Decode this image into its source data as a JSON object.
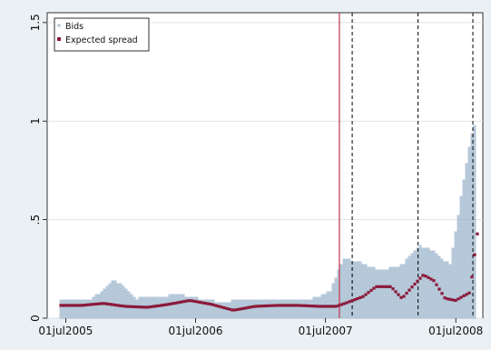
{
  "chart_data": {
    "type": "scatter",
    "xlabel": "",
    "ylabel": "",
    "x_range": [
      "2005-05-10",
      "2008-09-15"
    ],
    "ylim": [
      0,
      1.55
    ],
    "y_ticks": [
      {
        "value": 0,
        "label": "0"
      },
      {
        "value": 0.5,
        "label": ".5"
      },
      {
        "value": 1,
        "label": "1"
      },
      {
        "value": 1.5,
        "label": "1.5"
      }
    ],
    "x_ticks": [
      {
        "date": "2005-07-01",
        "label": "01jul2005"
      },
      {
        "date": "2006-07-01",
        "label": "01jul2006"
      },
      {
        "date": "2007-07-01",
        "label": "01jul2007"
      },
      {
        "date": "2008-07-01",
        "label": "01jul2008"
      }
    ],
    "grid": true,
    "legend_position": "top-left",
    "series": [
      {
        "name": "Bids",
        "marker": "hollow square",
        "color": "#8aa8c2",
        "bands": [
          {
            "x": "2005-06-15",
            "low": 0.0,
            "high": 0.09
          },
          {
            "x": "2005-09-15",
            "low": 0.0,
            "high": 0.1
          },
          {
            "x": "2005-11-15",
            "low": 0.0,
            "high": 0.2
          },
          {
            "x": "2006-01-15",
            "low": 0.0,
            "high": 0.1
          },
          {
            "x": "2006-03-15",
            "low": 0.0,
            "high": 0.11
          },
          {
            "x": "2006-05-15",
            "low": 0.0,
            "high": 0.12
          },
          {
            "x": "2006-07-15",
            "low": 0.0,
            "high": 0.1
          },
          {
            "x": "2006-09-15",
            "low": 0.0,
            "high": 0.08
          },
          {
            "x": "2006-11-15",
            "low": 0.0,
            "high": 0.1
          },
          {
            "x": "2007-01-15",
            "low": 0.0,
            "high": 0.1
          },
          {
            "x": "2007-03-15",
            "low": 0.0,
            "high": 0.09
          },
          {
            "x": "2007-05-15",
            "low": 0.0,
            "high": 0.09
          },
          {
            "x": "2007-07-15",
            "low": 0.0,
            "high": 0.14
          },
          {
            "x": "2007-08-20",
            "low": 0.0,
            "high": 0.3
          },
          {
            "x": "2007-10-01",
            "low": 0.0,
            "high": 0.29
          },
          {
            "x": "2007-12-01",
            "low": 0.0,
            "high": 0.24
          },
          {
            "x": "2008-02-01",
            "low": 0.0,
            "high": 0.27
          },
          {
            "x": "2008-03-20",
            "low": 0.0,
            "high": 0.37
          },
          {
            "x": "2008-05-01",
            "low": 0.0,
            "high": 0.34
          },
          {
            "x": "2008-06-15",
            "low": 0.0,
            "high": 0.27
          },
          {
            "x": "2008-08-10",
            "low": 0.0,
            "high": 0.9
          },
          {
            "x": "2008-08-25",
            "low": 0.0,
            "high": 1.0
          }
        ]
      },
      {
        "name": "Expected spread",
        "marker": "filled square",
        "color": "#8b1a3a",
        "points": [
          {
            "x": "2005-06-15",
            "y": 0.065
          },
          {
            "x": "2005-08-15",
            "y": 0.065
          },
          {
            "x": "2005-10-15",
            "y": 0.075
          },
          {
            "x": "2005-12-15",
            "y": 0.06
          },
          {
            "x": "2006-02-15",
            "y": 0.055
          },
          {
            "x": "2006-04-15",
            "y": 0.07
          },
          {
            "x": "2006-06-15",
            "y": 0.09
          },
          {
            "x": "2006-08-15",
            "y": 0.07
          },
          {
            "x": "2006-10-15",
            "y": 0.04
          },
          {
            "x": "2006-12-15",
            "y": 0.06
          },
          {
            "x": "2007-02-15",
            "y": 0.065
          },
          {
            "x": "2007-04-15",
            "y": 0.065
          },
          {
            "x": "2007-06-15",
            "y": 0.06
          },
          {
            "x": "2007-08-01",
            "y": 0.06
          },
          {
            "x": "2007-09-01",
            "y": 0.08
          },
          {
            "x": "2007-10-15",
            "y": 0.11
          },
          {
            "x": "2007-11-20",
            "y": 0.16
          },
          {
            "x": "2008-01-01",
            "y": 0.16
          },
          {
            "x": "2008-02-01",
            "y": 0.1
          },
          {
            "x": "2008-03-01",
            "y": 0.16
          },
          {
            "x": "2008-04-01",
            "y": 0.22
          },
          {
            "x": "2008-05-01",
            "y": 0.19
          },
          {
            "x": "2008-06-01",
            "y": 0.1
          },
          {
            "x": "2008-07-01",
            "y": 0.09
          },
          {
            "x": "2008-07-20",
            "y": 0.11
          },
          {
            "x": "2008-08-10",
            "y": 0.13
          },
          {
            "x": "2008-08-25",
            "y": 0.35
          },
          {
            "x": "2008-09-05",
            "y": 0.5
          }
        ]
      }
    ],
    "reference_lines": [
      {
        "x": "2007-08-09",
        "style": "solid",
        "color": "#c0304a"
      },
      {
        "x": "2007-09-14",
        "style": "dashed",
        "color": "#000000"
      },
      {
        "x": "2008-03-17",
        "style": "dashed",
        "color": "#000000"
      },
      {
        "x": "2008-08-18",
        "style": "dashed",
        "color": "#000000"
      }
    ]
  }
}
